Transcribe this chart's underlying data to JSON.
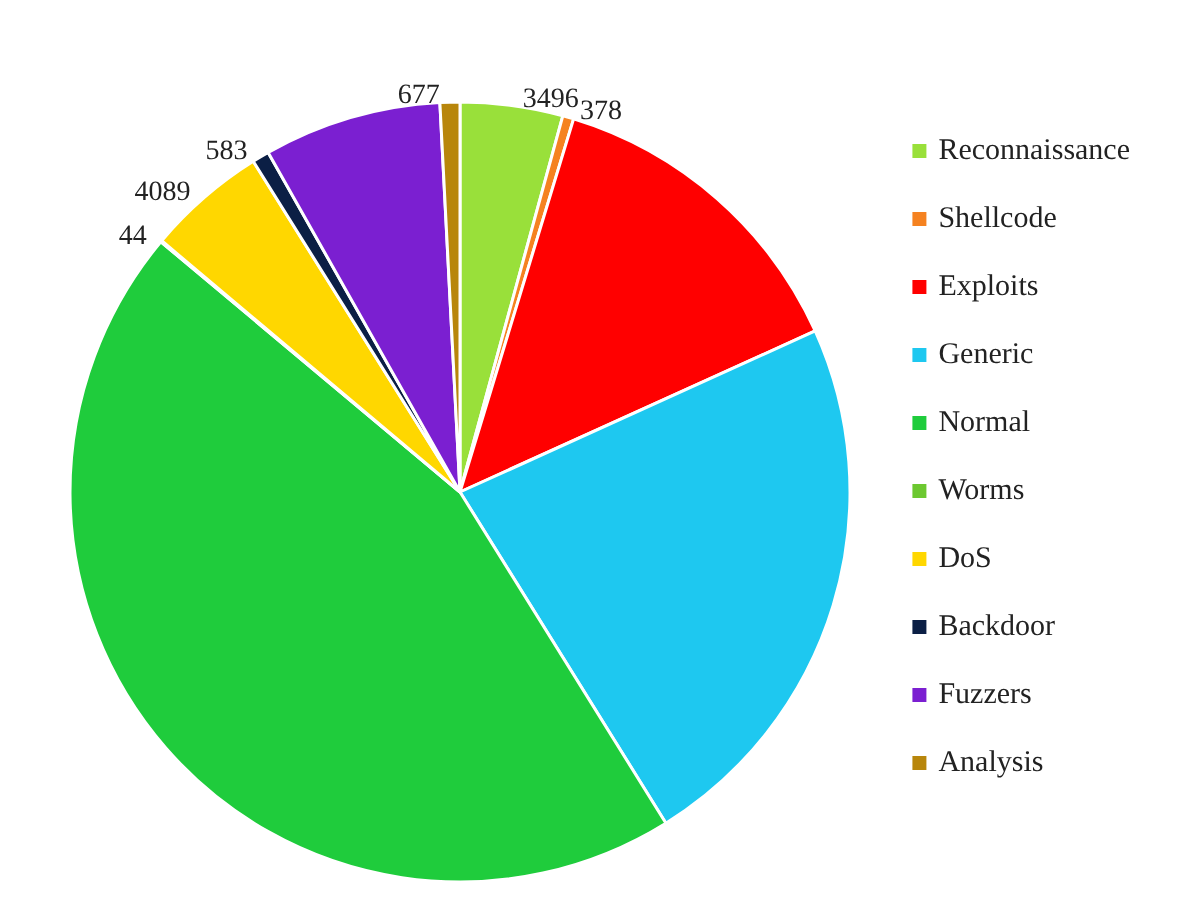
{
  "chart_data": {
    "type": "pie",
    "categories": [
      "Reconnaissance",
      "Shellcode",
      "Exploits",
      "Generic",
      "Normal",
      "Worms",
      "DoS",
      "Backdoor",
      "Fuzzers",
      "Analysis"
    ],
    "values": [
      3496,
      378,
      11132,
      18871,
      37000,
      44,
      4089,
      583,
      6062,
      677
    ],
    "value_labels": [
      "3496",
      "378",
      null,
      null,
      null,
      "44",
      "4089",
      "583",
      null,
      "677"
    ],
    "colors": [
      "#99e03a",
      "#f58220",
      "#ff0000",
      "#1ec8f0",
      "#1fcc3c",
      "#6cc830",
      "#ffd700",
      "#0b1f45",
      "#7b1fd1",
      "#b8860b"
    ],
    "legend": "right"
  }
}
